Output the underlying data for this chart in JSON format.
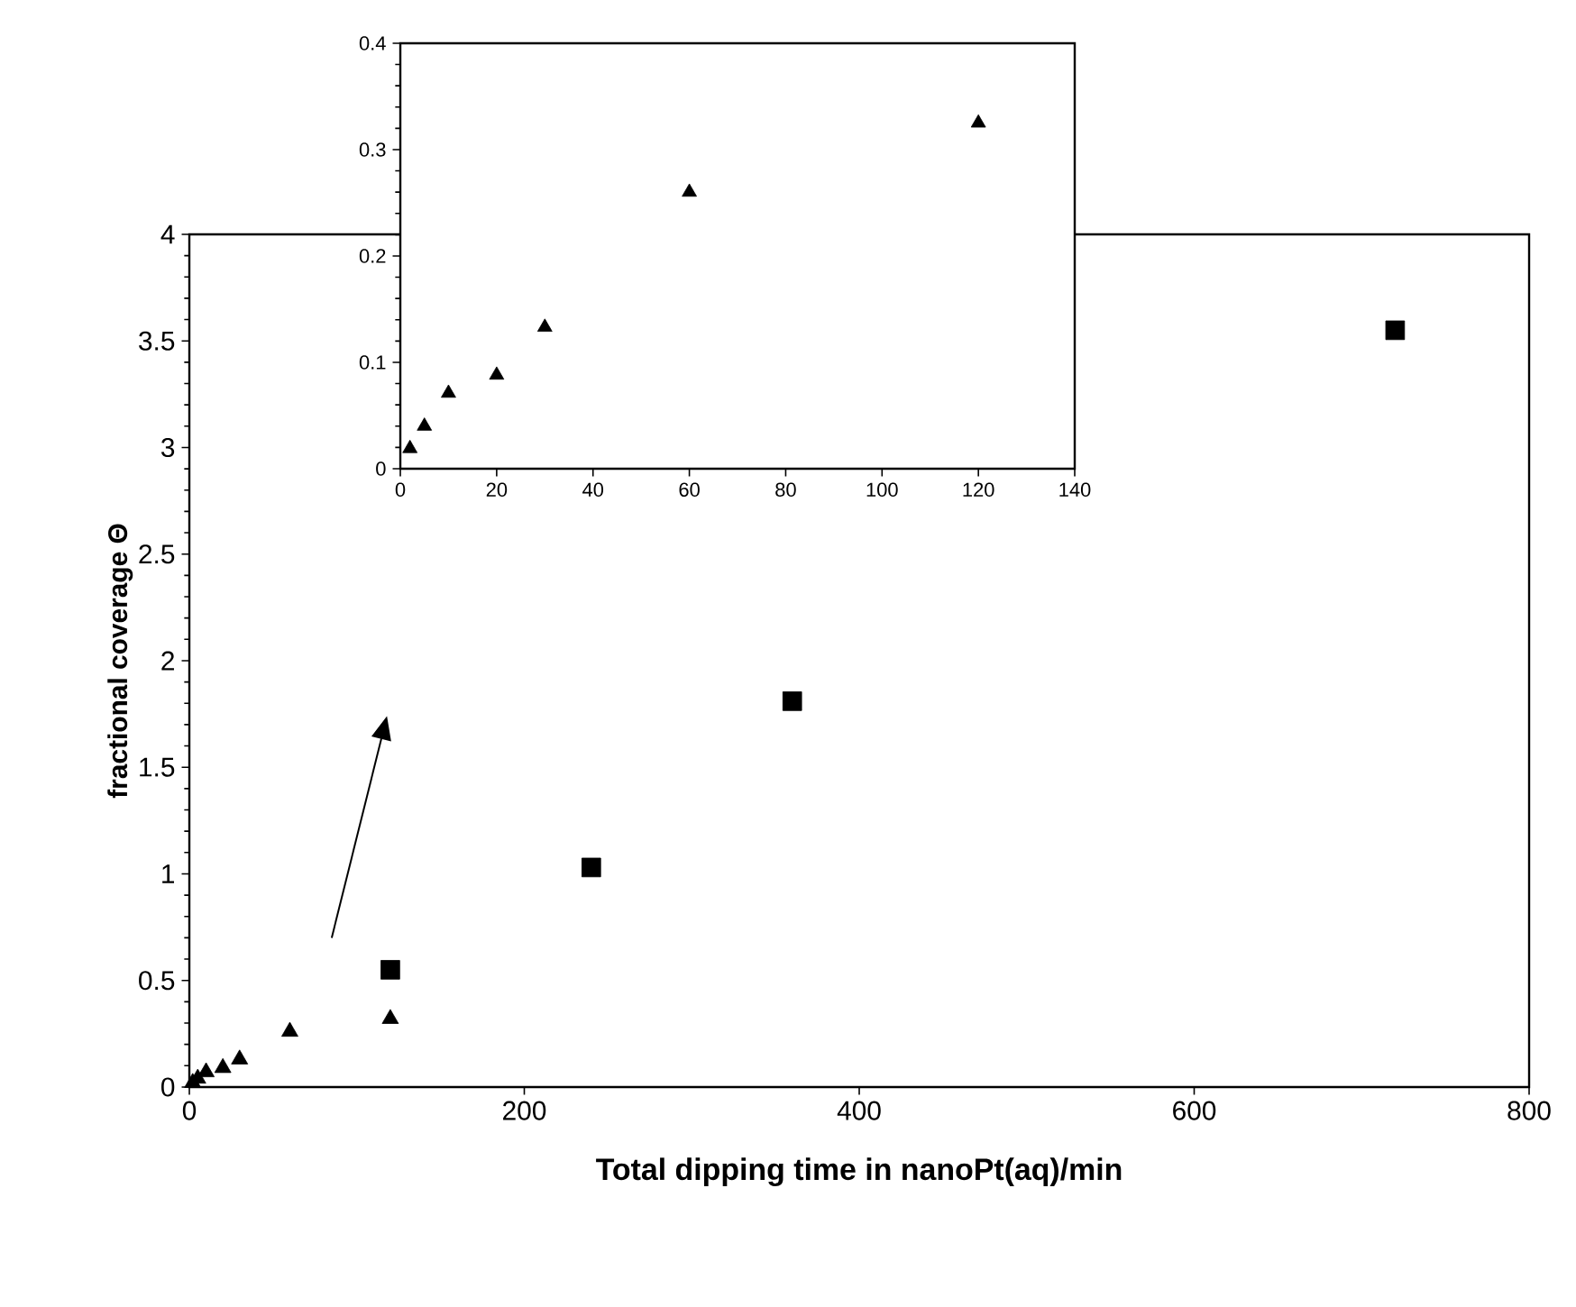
{
  "chart_data": [
    {
      "type": "scatter",
      "xlabel": "Total dipping time in nanoPt(aq)/min",
      "ylabel": "fractional coverage  Θ",
      "xlim": [
        0,
        800
      ],
      "ylim": [
        0,
        4
      ],
      "xticks": [
        0,
        200,
        400,
        600,
        800
      ],
      "yticks": [
        0,
        0.5,
        1,
        1.5,
        2,
        2.5,
        3,
        3.5,
        4
      ],
      "series": [
        {
          "color": "#000000",
          "marker": "triangle",
          "x": [
            2,
            5,
            10,
            20,
            30,
            60,
            120
          ],
          "values": [
            0.02,
            0.04,
            0.07,
            0.09,
            0.13,
            0.26,
            0.32
          ]
        },
        {
          "color": "#000000",
          "marker": "square",
          "x": [
            120,
            240,
            360,
            720
          ],
          "values": [
            0.55,
            1.03,
            1.81,
            3.55
          ]
        }
      ]
    },
    {
      "type": "scatter",
      "xlim": [
        0,
        140
      ],
      "ylim": [
        0,
        0.4
      ],
      "xticks": [
        0,
        20,
        40,
        60,
        80,
        100,
        120,
        140
      ],
      "yticks": [
        0,
        0.1,
        0.2,
        0.3,
        0.4
      ],
      "series": [
        {
          "color": "#000000",
          "marker": "triangle",
          "x": [
            2,
            5,
            10,
            20,
            30,
            60,
            120
          ],
          "values": [
            0.019,
            0.04,
            0.071,
            0.088,
            0.133,
            0.26,
            0.325
          ]
        }
      ]
    }
  ]
}
